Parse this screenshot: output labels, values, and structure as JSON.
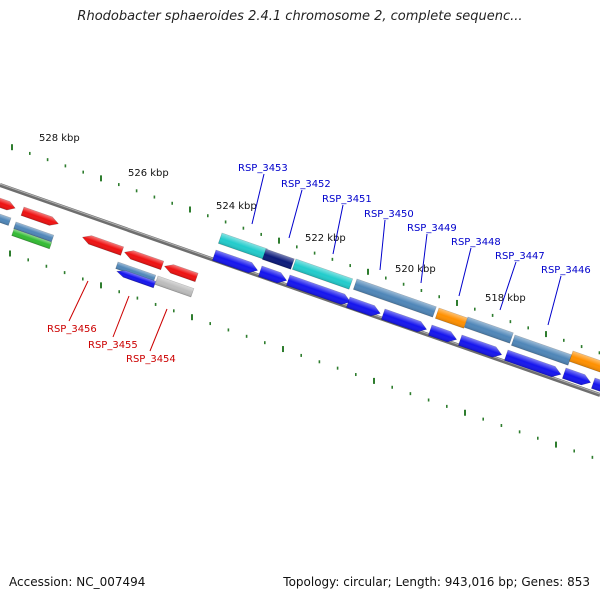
{
  "header": {
    "title": "Rhodobacter sphaeroides 2.4.1 chromosome 2, complete sequenc..."
  },
  "footer": {
    "accession": "Accession: NC_007494",
    "summary": "Topology: circular; Length: 943,016 bp; Genes: 853"
  },
  "colors": {
    "backbone": "#7a7a7a",
    "tick": "#2e7d2e",
    "upper_label": "#0000cc",
    "lower_label": "#cc0000",
    "red": "#ee1111",
    "cyan": "#22cccc",
    "navy": "#0b1a7a",
    "blue": "#1515ee",
    "steel": "#4f86b8",
    "orange": "#ff9000",
    "grey": "#bdbdbd",
    "green": "#33bb33"
  },
  "kbp_labels": [
    "528 kbp",
    "526 kbp",
    "524 kbp",
    "522 kbp",
    "520 kbp",
    "518 kbp"
  ],
  "upper_genes": [
    "RSP_3453",
    "RSP_3452",
    "RSP_3451",
    "RSP_3450",
    "RSP_3449",
    "RSP_3448",
    "RSP_3447",
    "RSP_3446"
  ],
  "lower_genes": [
    "RSP_3456",
    "RSP_3455",
    "RSP_3454"
  ]
}
